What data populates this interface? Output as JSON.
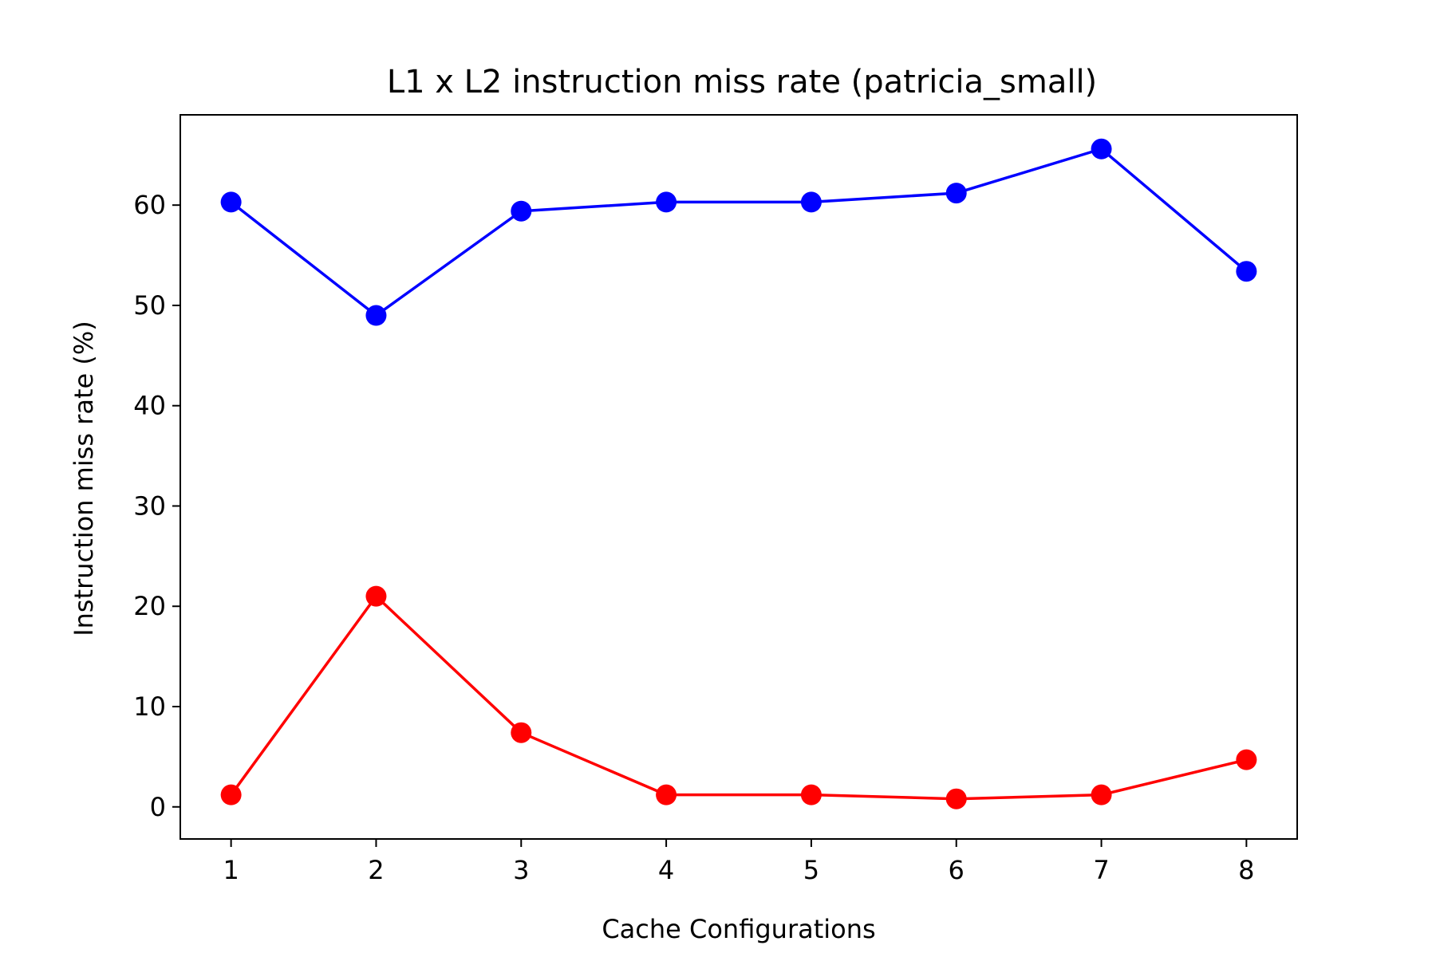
{
  "chart_data": {
    "type": "line",
    "title": "L1 x L2 instruction miss rate (patricia_small)",
    "xlabel": "Cache Configurations",
    "ylabel": "Instruction miss rate (%)",
    "x": [
      1,
      2,
      3,
      4,
      5,
      6,
      7,
      8
    ],
    "x_ticks": [
      "1",
      "2",
      "3",
      "4",
      "5",
      "6",
      "7",
      "8"
    ],
    "y_ticks": [
      "0",
      "10",
      "20",
      "30",
      "40",
      "50",
      "60"
    ],
    "y_tick_values": [
      0,
      10,
      20,
      30,
      40,
      50,
      60
    ],
    "xlim": [
      0.65,
      8.35
    ],
    "ylim": [
      -3.2,
      69.0
    ],
    "grid": false,
    "legend": "none",
    "series": [
      {
        "color": "#0000ff",
        "values": [
          60.3,
          49.0,
          59.4,
          60.3,
          60.3,
          61.2,
          65.6,
          53.4
        ]
      },
      {
        "color": "#ff0000",
        "values": [
          1.2,
          21.0,
          7.4,
          1.2,
          1.2,
          0.8,
          1.2,
          4.7
        ]
      }
    ]
  }
}
